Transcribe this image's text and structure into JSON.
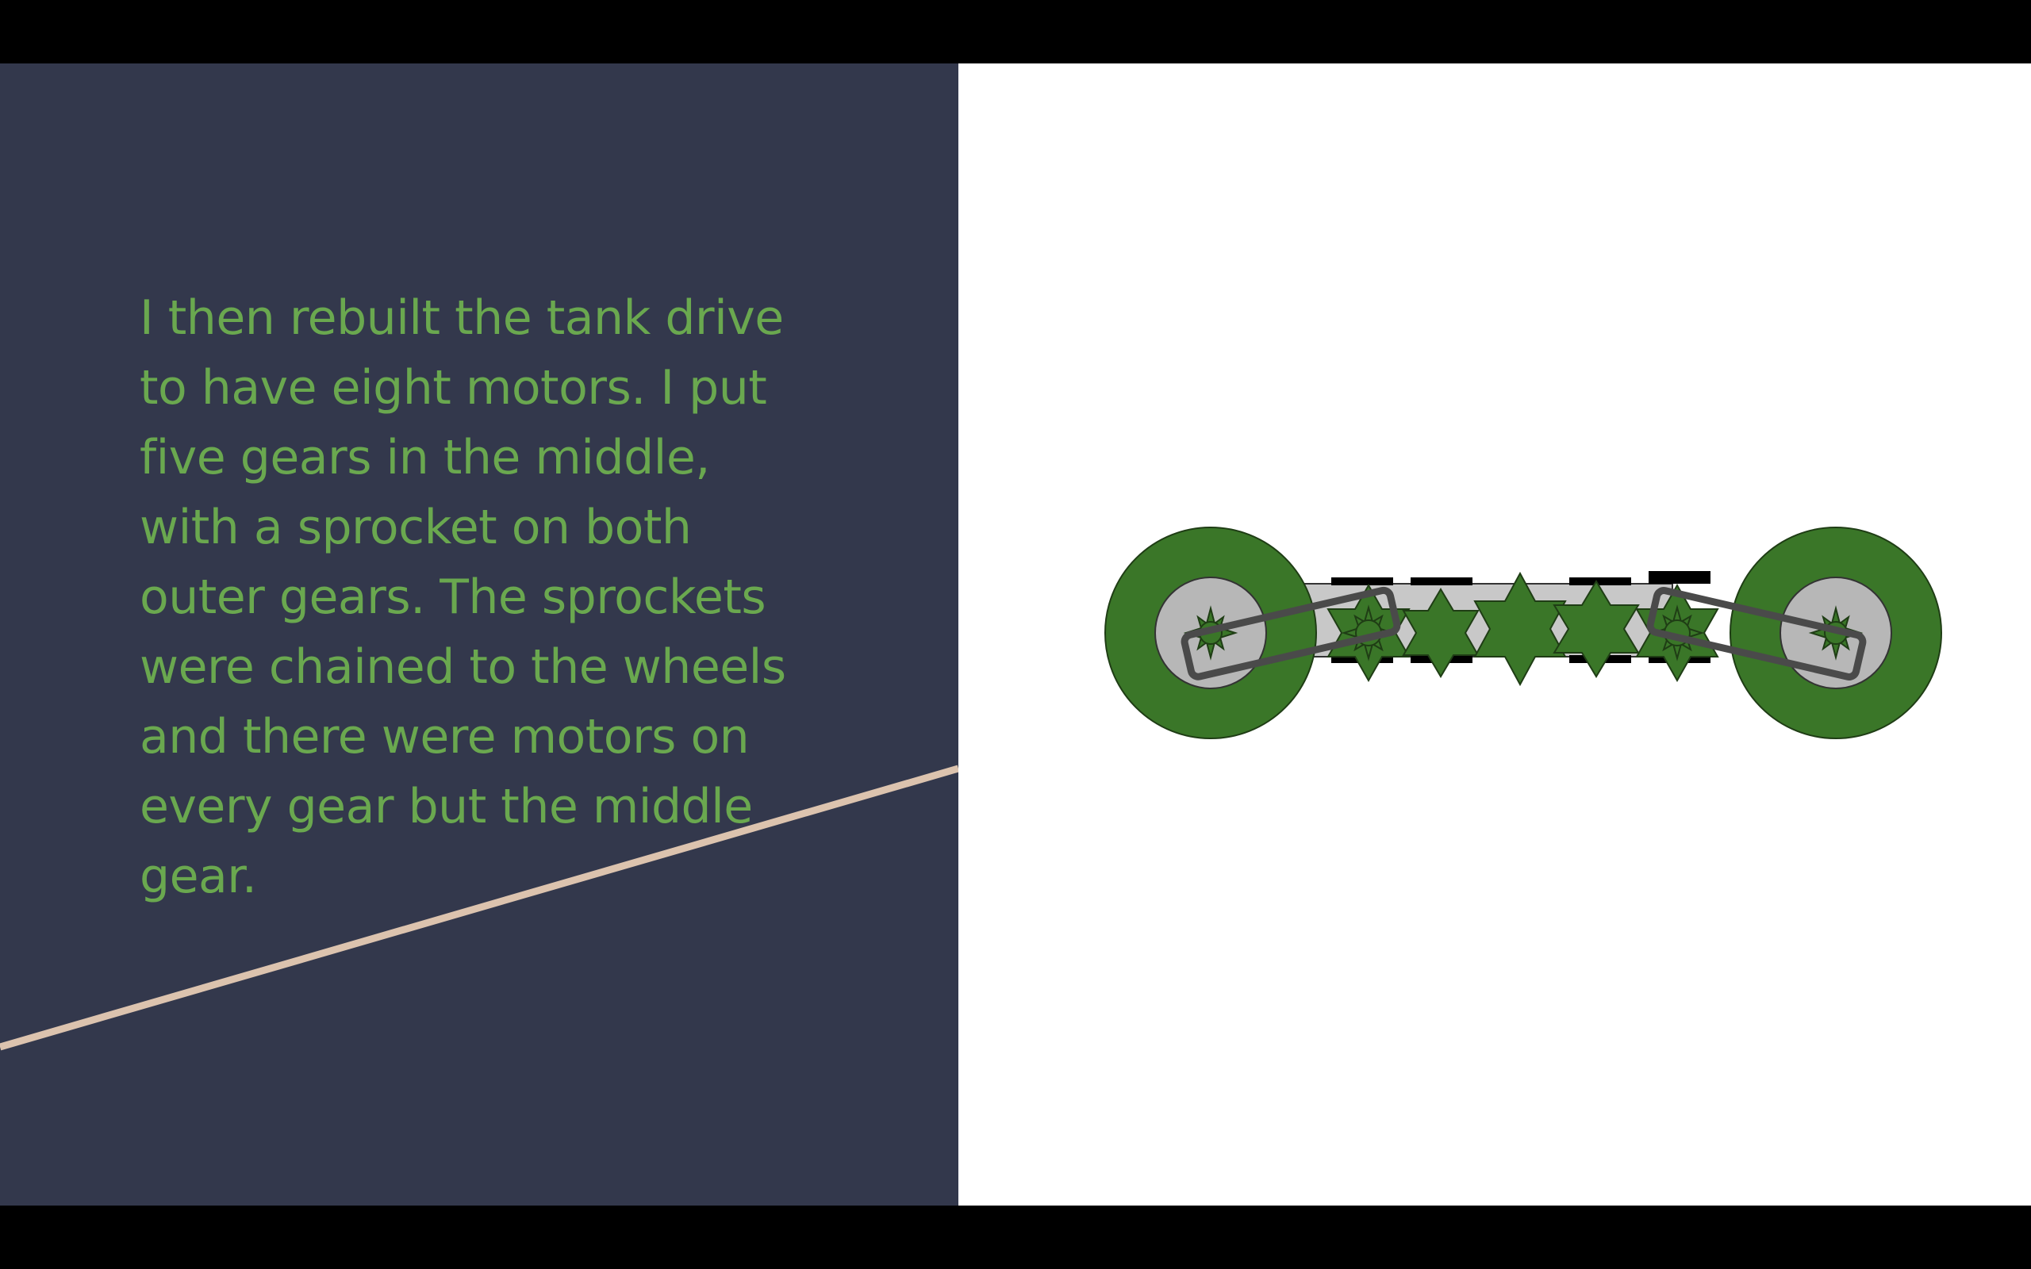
{
  "slide": {
    "body_text": "I then rebuilt the tank drive\nto have eight motors. I put\nfive gears in the middle,\nwith a sprocket on both\nouter gears. The sprockets\nwere chained to the wheels\nand there were motors on\nevery gear but the middle\ngear."
  },
  "colors": {
    "panel_background": "#33384c",
    "text": "#6aa84f",
    "accent_line": "#dcc3ae",
    "gear_green": "#3a7628",
    "frame_gray": "#c8c8c8",
    "hub_gray": "#b7b7b7",
    "chain_gray": "#4a4a4a",
    "motor_black": "#000000"
  },
  "diagram": {
    "description_icons": [
      "wheel-icon",
      "gear-icon",
      "sprocket-icon",
      "chain-icon",
      "motor-icon"
    ],
    "wheel_count": 2,
    "gear_count": 5,
    "sprocket_count": 2,
    "motor_count": 8
  }
}
